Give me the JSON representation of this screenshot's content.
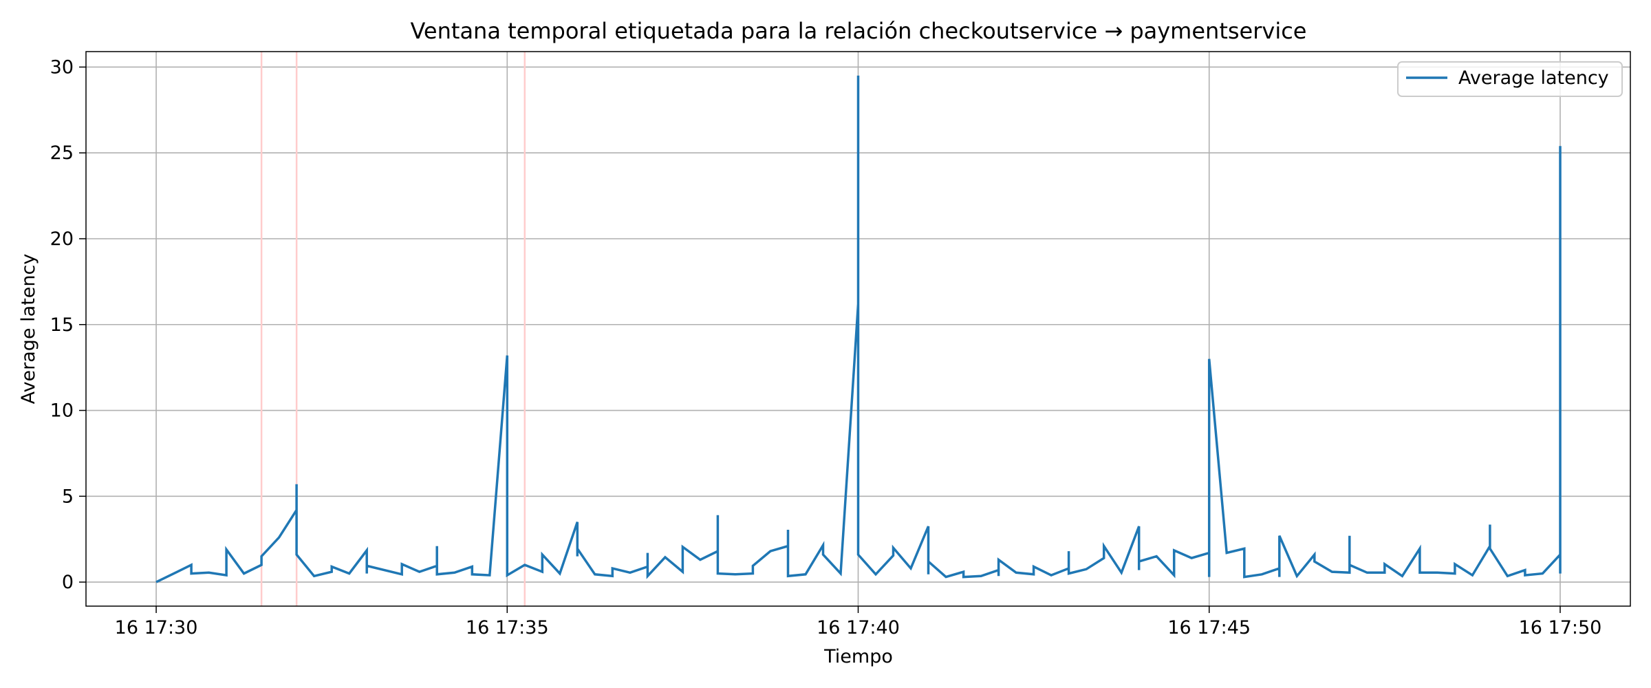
{
  "chart_data": {
    "type": "line",
    "title": "Ventana temporal etiquetada para la relación checkoutservice → paymentservice",
    "xlabel": "Tiempo",
    "ylabel": "Average latency",
    "xlim": [
      "16 17:29:00",
      "16 17:51:00"
    ],
    "ylim": [
      -1.4,
      30.9
    ],
    "yticks": [
      0,
      5,
      10,
      15,
      20,
      25,
      30
    ],
    "xticks": [
      {
        "t": "16 17:30:00",
        "label": "16 17:30"
      },
      {
        "t": "16 17:35:00",
        "label": "16 17:35"
      },
      {
        "t": "16 17:40:00",
        "label": "16 17:40"
      },
      {
        "t": "16 17:45:00",
        "label": "16 17:45"
      },
      {
        "t": "16 17:50:00",
        "label": "16 17:50"
      }
    ],
    "grid": true,
    "legend_position": "top-right",
    "highlight_color": "#ffcccc",
    "highlight_lines": [
      "16 17:31:30",
      "16 17:32:00",
      "16 17:35:15"
    ],
    "series": [
      {
        "name": "Average latency",
        "color": "#1f77b4",
        "points": [
          [
            "16 17:30:00",
            0.0
          ],
          [
            "16 17:30:30",
            1.0
          ],
          [
            "16 17:30:30",
            0.5
          ],
          [
            "16 17:30:45",
            0.55
          ],
          [
            "16 17:31:00",
            0.4
          ],
          [
            "16 17:31:00",
            1.9
          ],
          [
            "16 17:31:15",
            0.5
          ],
          [
            "16 17:31:30",
            1.0
          ],
          [
            "16 17:31:30",
            1.5
          ],
          [
            "16 17:31:45",
            2.6
          ],
          [
            "16 17:32:00",
            4.2
          ],
          [
            "16 17:32:00",
            5.7
          ],
          [
            "16 17:32:00",
            1.6
          ],
          [
            "16 17:32:15",
            0.35
          ],
          [
            "16 17:32:30",
            0.6
          ],
          [
            "16 17:32:30",
            0.9
          ],
          [
            "16 17:32:45",
            0.5
          ],
          [
            "16 17:33:00",
            1.85
          ],
          [
            "16 17:33:00",
            0.5
          ],
          [
            "16 17:33:00",
            0.95
          ],
          [
            "16 17:33:30",
            0.45
          ],
          [
            "16 17:33:30",
            1.05
          ],
          [
            "16 17:33:45",
            0.6
          ],
          [
            "16 17:34:00",
            0.95
          ],
          [
            "16 17:34:00",
            2.1
          ],
          [
            "16 17:34:00",
            0.45
          ],
          [
            "16 17:34:15",
            0.55
          ],
          [
            "16 17:34:30",
            0.9
          ],
          [
            "16 17:34:30",
            0.45
          ],
          [
            "16 17:34:45",
            0.4
          ],
          [
            "16 17:35:00",
            13.2
          ],
          [
            "16 17:35:00",
            0.4
          ],
          [
            "16 17:35:15",
            1.0
          ],
          [
            "16 17:35:30",
            0.6
          ],
          [
            "16 17:35:30",
            1.6
          ],
          [
            "16 17:35:45",
            0.5
          ],
          [
            "16 17:36:00",
            3.5
          ],
          [
            "16 17:36:00",
            1.5
          ],
          [
            "16 17:36:00",
            1.95
          ],
          [
            "16 17:36:15",
            0.45
          ],
          [
            "16 17:36:30",
            0.35
          ],
          [
            "16 17:36:30",
            0.8
          ],
          [
            "16 17:36:45",
            0.55
          ],
          [
            "16 17:37:00",
            0.9
          ],
          [
            "16 17:37:00",
            1.7
          ],
          [
            "16 17:37:00",
            0.35
          ],
          [
            "16 17:37:15",
            1.45
          ],
          [
            "16 17:37:30",
            0.6
          ],
          [
            "16 17:37:30",
            2.05
          ],
          [
            "16 17:37:45",
            1.3
          ],
          [
            "16 17:38:00",
            1.8
          ],
          [
            "16 17:38:00",
            3.9
          ],
          [
            "16 17:38:00",
            0.5
          ],
          [
            "16 17:38:15",
            0.45
          ],
          [
            "16 17:38:30",
            0.5
          ],
          [
            "16 17:38:30",
            0.95
          ],
          [
            "16 17:38:45",
            1.8
          ],
          [
            "16 17:39:00",
            2.1
          ],
          [
            "16 17:39:00",
            3.05
          ],
          [
            "16 17:39:00",
            0.35
          ],
          [
            "16 17:39:15",
            0.45
          ],
          [
            "16 17:39:30",
            2.15
          ],
          [
            "16 17:39:30",
            1.6
          ],
          [
            "16 17:39:45",
            0.5
          ],
          [
            "16 17:40:00",
            16.2
          ],
          [
            "16 17:40:00",
            29.5
          ],
          [
            "16 17:40:00",
            1.6
          ],
          [
            "16 17:40:15",
            0.45
          ],
          [
            "16 17:40:30",
            1.55
          ],
          [
            "16 17:40:30",
            2.0
          ],
          [
            "16 17:40:45",
            0.8
          ],
          [
            "16 17:41:00",
            3.25
          ],
          [
            "16 17:41:00",
            0.45
          ],
          [
            "16 17:41:00",
            1.2
          ],
          [
            "16 17:41:15",
            0.3
          ],
          [
            "16 17:41:30",
            0.6
          ],
          [
            "16 17:41:30",
            0.3
          ],
          [
            "16 17:41:45",
            0.35
          ],
          [
            "16 17:42:00",
            0.7
          ],
          [
            "16 17:42:00",
            0.35
          ],
          [
            "16 17:42:00",
            1.3
          ],
          [
            "16 17:42:15",
            0.55
          ],
          [
            "16 17:42:30",
            0.45
          ],
          [
            "16 17:42:30",
            0.9
          ],
          [
            "16 17:42:45",
            0.4
          ],
          [
            "16 17:43:00",
            0.8
          ],
          [
            "16 17:43:00",
            1.8
          ],
          [
            "16 17:43:00",
            0.5
          ],
          [
            "16 17:43:15",
            0.75
          ],
          [
            "16 17:43:30",
            1.4
          ],
          [
            "16 17:43:30",
            2.1
          ],
          [
            "16 17:43:45",
            0.55
          ],
          [
            "16 17:44:00",
            3.25
          ],
          [
            "16 17:44:00",
            0.7
          ],
          [
            "16 17:44:00",
            1.2
          ],
          [
            "16 17:44:15",
            1.5
          ],
          [
            "16 17:44:30",
            0.4
          ],
          [
            "16 17:44:30",
            1.85
          ],
          [
            "16 17:44:45",
            1.4
          ],
          [
            "16 17:45:00",
            1.7
          ],
          [
            "16 17:45:00",
            0.3
          ],
          [
            "16 17:45:00",
            13.0
          ],
          [
            "16 17:45:15",
            1.7
          ],
          [
            "16 17:45:30",
            1.95
          ],
          [
            "16 17:45:30",
            0.3
          ],
          [
            "16 17:45:45",
            0.45
          ],
          [
            "16 17:46:00",
            0.8
          ],
          [
            "16 17:46:00",
            0.3
          ],
          [
            "16 17:46:00",
            2.7
          ],
          [
            "16 17:46:15",
            0.35
          ],
          [
            "16 17:46:30",
            1.6
          ],
          [
            "16 17:46:30",
            1.2
          ],
          [
            "16 17:46:45",
            0.6
          ],
          [
            "16 17:47:00",
            0.55
          ],
          [
            "16 17:47:00",
            2.7
          ],
          [
            "16 17:47:00",
            1.0
          ],
          [
            "16 17:47:15",
            0.55
          ],
          [
            "16 17:47:30",
            0.55
          ],
          [
            "16 17:47:30",
            1.05
          ],
          [
            "16 17:47:45",
            0.35
          ],
          [
            "16 17:48:00",
            1.95
          ],
          [
            "16 17:48:00",
            0.55
          ],
          [
            "16 17:48:15",
            0.55
          ],
          [
            "16 17:48:30",
            0.5
          ],
          [
            "16 17:48:30",
            1.05
          ],
          [
            "16 17:48:45",
            0.4
          ],
          [
            "16 17:49:00",
            2.1
          ],
          [
            "16 17:49:00",
            3.35
          ],
          [
            "16 17:49:00",
            1.95
          ],
          [
            "16 17:49:15",
            0.35
          ],
          [
            "16 17:49:30",
            0.7
          ],
          [
            "16 17:49:30",
            0.4
          ],
          [
            "16 17:49:45",
            0.5
          ],
          [
            "16 17:50:00",
            1.6
          ],
          [
            "16 17:50:00",
            25.4
          ],
          [
            "16 17:50:00",
            0.5
          ]
        ]
      }
    ]
  }
}
